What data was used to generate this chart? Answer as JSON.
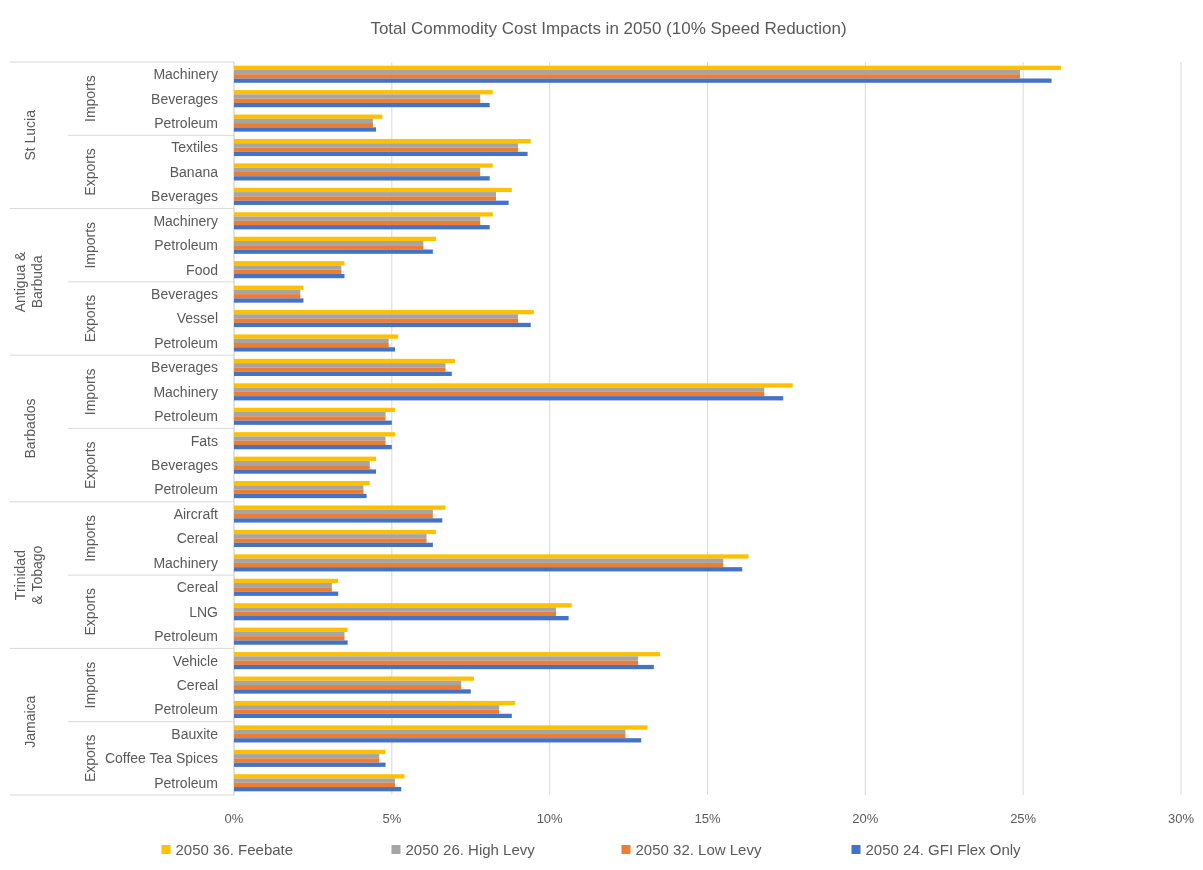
{
  "chart_data": {
    "type": "bar",
    "orientation": "horizontal",
    "title": "Total Commodity Cost Impacts in 2050 (10% Speed Reduction)",
    "categories": [
      "Machinery",
      "Beverages",
      "Petroleum",
      "Textiles",
      "Banana",
      "Beverages",
      "Machinery",
      "Petroleum",
      "Food",
      "Beverages",
      "Vessel",
      "Petroleum",
      "Beverages",
      "Machinery",
      "Petroleum",
      "Fats",
      "Beverages",
      "Petroleum",
      "Aircraft",
      "Cereal",
      "Machinery",
      "Cereal",
      "LNG",
      "Petroleum",
      "Vehicle",
      "Cereal",
      "Petroleum",
      "Bauxite",
      "Coffee Tea Spices",
      "Petroleum"
    ],
    "series": [
      {
        "name": "2050 36. Feebate",
        "color": "#ffc000",
        "values": [
          26.2,
          8.2,
          4.7,
          9.4,
          8.2,
          8.8,
          8.2,
          6.4,
          3.5,
          2.2,
          9.5,
          5.2,
          7.0,
          17.7,
          5.1,
          5.1,
          4.5,
          4.3,
          6.7,
          6.4,
          16.3,
          3.3,
          10.7,
          3.6,
          13.5,
          7.6,
          8.9,
          13.1,
          4.8,
          5.4
        ]
      },
      {
        "name": "2050 26. High Levy",
        "color": "#a5a5a5",
        "values": [
          24.9,
          7.8,
          4.4,
          9.0,
          7.8,
          8.3,
          7.8,
          6.0,
          3.4,
          2.1,
          9.0,
          4.9,
          6.7,
          16.8,
          4.8,
          4.8,
          4.3,
          4.1,
          6.3,
          6.1,
          15.5,
          3.1,
          10.2,
          3.5,
          12.8,
          7.2,
          8.4,
          12.4,
          4.6,
          5.1
        ]
      },
      {
        "name": "2050 32. Low Levy",
        "color": "#ed7d31",
        "values": [
          24.9,
          7.8,
          4.4,
          9.0,
          7.8,
          8.3,
          7.8,
          6.0,
          3.4,
          2.1,
          9.0,
          4.9,
          6.7,
          16.8,
          4.8,
          4.8,
          4.3,
          4.1,
          6.3,
          6.1,
          15.5,
          3.1,
          10.2,
          3.5,
          12.8,
          7.2,
          8.4,
          12.4,
          4.6,
          5.1
        ]
      },
      {
        "name": "2050 24. GFI Flex Only",
        "color": "#4472c4",
        "values": [
          25.9,
          8.1,
          4.5,
          9.3,
          8.1,
          8.7,
          8.1,
          6.3,
          3.5,
          2.2,
          9.4,
          5.1,
          6.9,
          17.4,
          5.0,
          5.0,
          4.5,
          4.2,
          6.6,
          6.3,
          16.1,
          3.3,
          10.6,
          3.6,
          13.3,
          7.5,
          8.8,
          12.9,
          4.8,
          5.3
        ]
      }
    ],
    "xlim": [
      0,
      30
    ],
    "xticks": [
      {
        "value": 0,
        "label": "0%"
      },
      {
        "value": 5,
        "label": "5%"
      },
      {
        "value": 10,
        "label": "10%"
      },
      {
        "value": 15,
        "label": "15%"
      },
      {
        "value": 20,
        "label": "20%"
      },
      {
        "value": 25,
        "label": "25%"
      },
      {
        "value": 30,
        "label": "30%"
      }
    ],
    "grid": "x",
    "legend": "bottom",
    "annotations": [
      "St Lucia",
      "Imports",
      "Exports",
      "Antigua & Barbuda",
      "Imports",
      "Exports",
      "Barbados",
      "Imports",
      "Exports",
      "Trinidad & Tobago",
      "Imports",
      "Exports",
      "Jamaica",
      "Imports",
      "Exports"
    ]
  }
}
